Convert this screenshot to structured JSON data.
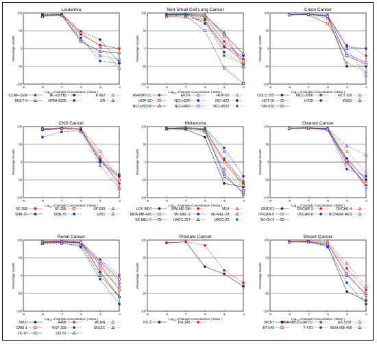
{
  "figure": {
    "ylabel": "Percentage Growth",
    "xlabel_main": "Log",
    "xlabel_sub": "10",
    "xlabel_rest": " of Sample Concentration ( Molar )",
    "x_ticks": [
      -9,
      -8,
      -7,
      -6,
      -5,
      -4
    ],
    "y_ticks": [
      100,
      50,
      0,
      -50,
      -100
    ]
  },
  "chart_data": [
    {
      "type": "line",
      "title": "Leukemia",
      "ylim": [
        -100,
        100
      ],
      "xlim": [
        -9,
        -4
      ],
      "x": [
        -8,
        -7,
        -6,
        -5,
        -4
      ],
      "series": [
        {
          "name": "CCRF-CEM",
          "color": "#d9231c",
          "marker": "circle",
          "values": [
            94,
            96,
            40,
            10,
            0
          ]
        },
        {
          "name": "HL-60(TB)",
          "color": "#2c2c2c",
          "marker": "circle",
          "values": [
            96,
            97,
            48,
            25,
            -40
          ]
        },
        {
          "name": "K-562",
          "color": "#d9231c",
          "marker": "triangle",
          "values": [
            93,
            97,
            45,
            5,
            -55
          ]
        },
        {
          "name": "MOLT-4",
          "color": "#333333",
          "marker": "triangle",
          "values": [
            92,
            94,
            20,
            -8,
            -12
          ]
        },
        {
          "name": "RPMI-8226",
          "color": "#2233cc",
          "marker": "circle",
          "values": [
            94,
            95,
            30,
            -35,
            -42
          ]
        },
        {
          "name": "SR",
          "color": "#2233cc",
          "marker": "triangle",
          "values": [
            90,
            93,
            25,
            -20,
            -30
          ]
        }
      ]
    },
    {
      "type": "line",
      "title": "Non-Small Cell Lung Cancer",
      "ylim": [
        -100,
        100
      ],
      "xlim": [
        -9,
        -4
      ],
      "x": [
        -8,
        -7,
        -6,
        -5,
        -4
      ],
      "series": [
        {
          "name": "A549/ATCC",
          "color": "#d9231c",
          "marker": "circle",
          "values": [
            95,
            96,
            88,
            20,
            -30
          ]
        },
        {
          "name": "EKVX",
          "color": "#2233cc",
          "marker": "triangle",
          "values": [
            96,
            97,
            92,
            45,
            -50
          ]
        },
        {
          "name": "HOP-62",
          "color": "#d9231c",
          "marker": "triangle",
          "values": [
            94,
            96,
            90,
            35,
            -40
          ]
        },
        {
          "name": "HOP-92",
          "color": "#d9231c",
          "marker": "square",
          "values": [
            90,
            88,
            78,
            8,
            -35
          ]
        },
        {
          "name": "NCI-H226",
          "color": "#2233cc",
          "marker": "circle",
          "values": [
            96,
            97,
            70,
            5,
            -20
          ]
        },
        {
          "name": "NCI-H23",
          "color": "#2c2c2c",
          "marker": "circle",
          "values": [
            95,
            95,
            82,
            -10,
            -45
          ]
        },
        {
          "name": "NCI-H322M",
          "color": "#2c2c2c",
          "marker": "triangle",
          "values": [
            97,
            98,
            95,
            40,
            -15
          ]
        },
        {
          "name": "NCI-H460",
          "color": "#2233cc",
          "marker": "square",
          "values": [
            94,
            92,
            50,
            -55,
            -98
          ]
        },
        {
          "name": "NCI-H522",
          "color": "#1e8a2a",
          "marker": "circle",
          "values": [
            93,
            94,
            80,
            -20,
            -45
          ]
        }
      ]
    },
    {
      "type": "line",
      "title": "Colon Cancer",
      "ylim": [
        -100,
        100
      ],
      "xlim": [
        -9,
        -4
      ],
      "x": [
        -8,
        -7,
        -6,
        -5,
        -4
      ],
      "series": [
        {
          "name": "COLO 205",
          "color": "#2c2c2c",
          "marker": "circle",
          "values": [
            95,
            97,
            90,
            -50,
            -50
          ]
        },
        {
          "name": "HCC-2998",
          "color": "#d9231c",
          "marker": "circle",
          "values": [
            96,
            97,
            94,
            10,
            -20
          ]
        },
        {
          "name": "HCT-116",
          "color": "#d9231c",
          "marker": "triangle",
          "values": [
            95,
            96,
            85,
            -40,
            -65
          ]
        },
        {
          "name": "HCT-15",
          "color": "#d9231c",
          "marker": "square",
          "values": [
            94,
            95,
            70,
            -15,
            -40
          ]
        },
        {
          "name": "HT29",
          "color": "#2233cc",
          "marker": "circle",
          "values": [
            96,
            97,
            92,
            5,
            0
          ]
        },
        {
          "name": "KM12",
          "color": "#2233cc",
          "marker": "triangle",
          "values": [
            96,
            97,
            93,
            0,
            -75
          ]
        },
        {
          "name": "SW-620",
          "color": "#2233cc",
          "marker": "square",
          "values": [
            95,
            96,
            91,
            -20,
            -45
          ]
        }
      ]
    },
    {
      "type": "line",
      "title": "CNS Cancer",
      "ylim": [
        -100,
        100
      ],
      "xlim": [
        -9,
        -4
      ],
      "x": [
        -8,
        -7,
        -6,
        -5,
        -4
      ],
      "series": [
        {
          "name": "SF-268",
          "color": "#d9231c",
          "marker": "circle",
          "values": [
            92,
            95,
            92,
            10,
            -60
          ]
        },
        {
          "name": "SF-295",
          "color": "#d9231c",
          "marker": "square",
          "values": [
            94,
            97,
            95,
            30,
            -50
          ]
        },
        {
          "name": "SF-539",
          "color": "#d9231c",
          "marker": "triangle",
          "values": [
            95,
            96,
            93,
            15,
            -70
          ]
        },
        {
          "name": "SNB-19",
          "color": "#2c2c2c",
          "marker": "circle",
          "values": [
            90,
            94,
            92,
            0,
            -40
          ]
        },
        {
          "name": "SNB-75",
          "color": "#2233cc",
          "marker": "circle",
          "values": [
            70,
            85,
            88,
            5,
            -35
          ]
        },
        {
          "name": "U251",
          "color": "#2233cc",
          "marker": "triangle",
          "values": [
            93,
            95,
            85,
            -10,
            -75
          ]
        }
      ]
    },
    {
      "type": "line",
      "title": "Melanoma",
      "ylim": [
        -100,
        100
      ],
      "xlim": [
        -9,
        -4
      ],
      "x": [
        -8,
        -7,
        -6,
        -5,
        -4
      ],
      "series": [
        {
          "name": "LOX IMVI",
          "color": "#2c2c2c",
          "marker": "circle",
          "values": [
            93,
            92,
            70,
            -60,
            -70
          ]
        },
        {
          "name": "MALME-3M",
          "color": "#d9231c",
          "marker": "circle",
          "values": [
            95,
            96,
            90,
            5,
            -55
          ]
        },
        {
          "name": "M14",
          "color": "#d9231c",
          "marker": "triangle",
          "values": [
            95,
            97,
            88,
            -20,
            -75
          ]
        },
        {
          "name": "MDA-MB-435",
          "color": "#d9231c",
          "marker": "square",
          "values": [
            94,
            95,
            92,
            0,
            -65
          ]
        },
        {
          "name": "SK-MEL-2",
          "color": "#2233cc",
          "marker": "circle",
          "values": [
            96,
            97,
            95,
            40,
            -40
          ]
        },
        {
          "name": "SK-MEL-28",
          "color": "#2233cc",
          "marker": "triangle",
          "values": [
            95,
            96,
            94,
            30,
            -80
          ]
        },
        {
          "name": "SK-MEL-5",
          "color": "#2233cc",
          "marker": "square",
          "values": [
            94,
            96,
            90,
            -40,
            -85
          ]
        },
        {
          "name": "UACC-257",
          "color": "#2c2c2c",
          "marker": "triangle",
          "values": [
            93,
            94,
            85,
            -30,
            -90
          ]
        },
        {
          "name": "UACC-62",
          "color": "#1e8a2a",
          "marker": "circle",
          "values": [
            95,
            96,
            93,
            10,
            -60
          ]
        }
      ]
    },
    {
      "type": "line",
      "title": "Ovarian Cancer",
      "ylim": [
        -100,
        100
      ],
      "xlim": [
        -9,
        -4
      ],
      "x": [
        -8,
        -7,
        -6,
        -5,
        -4
      ],
      "series": [
        {
          "name": "IGROV1",
          "color": "#2c2c2c",
          "marker": "circle",
          "values": [
            95,
            96,
            95,
            10,
            -50
          ]
        },
        {
          "name": "OVCAR-3",
          "color": "#d9231c",
          "marker": "circle",
          "values": [
            96,
            97,
            94,
            0,
            -65
          ]
        },
        {
          "name": "OVCAR-4",
          "color": "#d9231c",
          "marker": "triangle",
          "values": [
            96,
            97,
            96,
            30,
            -30
          ]
        },
        {
          "name": "OVCAR-5",
          "color": "#d9231c",
          "marker": "square",
          "values": [
            94,
            95,
            90,
            -5,
            -60
          ]
        },
        {
          "name": "OVCAR-8",
          "color": "#2233cc",
          "marker": "circle",
          "values": [
            95,
            96,
            93,
            -20,
            -40
          ]
        },
        {
          "name": "NCI/ADR-RES",
          "color": "#2233cc",
          "marker": "triangle",
          "values": [
            96,
            97,
            95,
            45,
            20
          ]
        },
        {
          "name": "SK-OV-3",
          "color": "#2233cc",
          "marker": "square",
          "values": [
            95,
            96,
            92,
            5,
            -70
          ]
        }
      ]
    },
    {
      "type": "line",
      "title": "Renal Cancer",
      "ylim": [
        -100,
        100
      ],
      "xlim": [
        -9,
        -4
      ],
      "x": [
        -8,
        -7,
        -6,
        -5,
        -4
      ],
      "series": [
        {
          "name": "786-0",
          "color": "#2c2c2c",
          "marker": "circle",
          "values": [
            95,
            96,
            94,
            10,
            -60
          ]
        },
        {
          "name": "A498",
          "color": "#d9231c",
          "marker": "circle",
          "values": [
            96,
            97,
            95,
            45,
            0
          ]
        },
        {
          "name": "ACHN",
          "color": "#d9231c",
          "marker": "triangle",
          "values": [
            94,
            95,
            88,
            20,
            -30
          ]
        },
        {
          "name": "CAKI-1",
          "color": "#d9231c",
          "marker": "square",
          "values": [
            93,
            94,
            92,
            30,
            -40
          ]
        },
        {
          "name": "RXF 393",
          "color": "#2233cc",
          "marker": "circle",
          "values": [
            92,
            93,
            80,
            -10,
            -80
          ]
        },
        {
          "name": "SN12C",
          "color": "#2233cc",
          "marker": "triangle",
          "values": [
            95,
            96,
            90,
            35,
            -20
          ]
        },
        {
          "name": "TK-10",
          "color": "#2233cc",
          "marker": "square",
          "values": [
            94,
            95,
            93,
            40,
            -10
          ]
        },
        {
          "name": "UO-31",
          "color": "#2c2c2c",
          "marker": "triangle",
          "values": [
            90,
            91,
            85,
            0,
            -60
          ]
        }
      ]
    },
    {
      "type": "line",
      "title": "Prostate Cancer",
      "ylim": [
        -100,
        100
      ],
      "xlim": [
        -9,
        -4
      ],
      "x": [
        -8,
        -7,
        -6,
        -5,
        -4
      ],
      "series": [
        {
          "name": "PC-3",
          "color": "#2c2c2c",
          "marker": "circle",
          "values": [
            92,
            95,
            25,
            5,
            -30
          ]
        },
        {
          "name": "DU-145",
          "color": "#d9231c",
          "marker": "circle",
          "values": [
            93,
            95,
            85,
            15,
            -20
          ]
        }
      ]
    },
    {
      "type": "line",
      "title": "Breast Cancer",
      "ylim": [
        -100,
        100
      ],
      "xlim": [
        -9,
        -4
      ],
      "x": [
        -8,
        -7,
        -6,
        -5,
        -4
      ],
      "series": [
        {
          "name": "MCF7",
          "color": "#2c2c2c",
          "marker": "circle",
          "values": [
            95,
            94,
            85,
            -45,
            -70
          ]
        },
        {
          "name": "MDA-MB-231/ATCC",
          "color": "#d9231c",
          "marker": "circle",
          "values": [
            96,
            97,
            93,
            20,
            -40
          ]
        },
        {
          "name": "HS 578T",
          "color": "#d9231c",
          "marker": "triangle",
          "values": [
            96,
            98,
            95,
            35,
            -30
          ]
        },
        {
          "name": "BT-549",
          "color": "#d9231c",
          "marker": "square",
          "values": [
            94,
            95,
            90,
            5,
            -55
          ]
        },
        {
          "name": "T-47D",
          "color": "#2233cc",
          "marker": "circle",
          "values": [
            95,
            96,
            80,
            -20,
            -80
          ]
        },
        {
          "name": "MDA-MB-468",
          "color": "#2233cc",
          "marker": "triangle",
          "values": [
            94,
            95,
            88,
            0,
            -50
          ]
        }
      ]
    }
  ]
}
